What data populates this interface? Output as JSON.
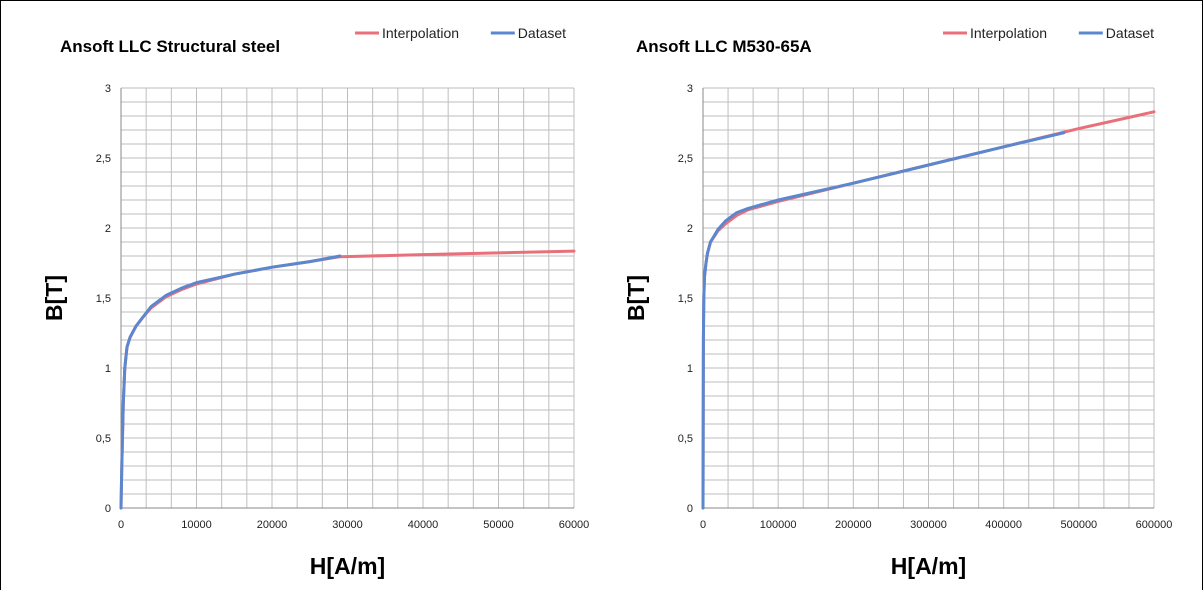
{
  "colors": {
    "interpolation": "#E8707A",
    "dataset": "#5B87CF",
    "grid": "#BEBEBE",
    "axis": "#888888"
  },
  "chart_data": [
    {
      "type": "line",
      "title": "Ansoft LLC Structural steel",
      "xlabel": "H[A/m]",
      "ylabel": "B[T]",
      "xlim": [
        0,
        60000
      ],
      "ylim": [
        0,
        3
      ],
      "x_ticks": [
        "0",
        "10000",
        "20000",
        "30000",
        "40000",
        "50000",
        "60000"
      ],
      "y_ticks": [
        "0",
        "0,5",
        "1",
        "1,5",
        "2",
        "2,5",
        "3"
      ],
      "grid": true,
      "legend": "top-right",
      "series": [
        {
          "name": "Interpolation",
          "color": "#E8707A",
          "x": [
            0,
            100,
            300,
            500,
            800,
            1200,
            2000,
            3000,
            4000,
            6000,
            8000,
            10000,
            15000,
            20000,
            25000,
            29000,
            33000,
            40000,
            52000,
            60000
          ],
          "y": [
            0,
            0.3,
            0.75,
            1.0,
            1.15,
            1.22,
            1.3,
            1.37,
            1.43,
            1.51,
            1.56,
            1.6,
            1.67,
            1.72,
            1.76,
            1.795,
            1.8,
            1.81,
            1.825,
            1.835
          ]
        },
        {
          "name": "Dataset",
          "color": "#5B87CF",
          "x": [
            0,
            100,
            300,
            500,
            800,
            1200,
            2000,
            3000,
            4000,
            6000,
            8000,
            10000,
            15000,
            20000,
            25000,
            29000
          ],
          "y": [
            0,
            0.3,
            0.75,
            1.0,
            1.15,
            1.22,
            1.3,
            1.37,
            1.44,
            1.52,
            1.57,
            1.61,
            1.67,
            1.72,
            1.76,
            1.8
          ]
        }
      ]
    },
    {
      "type": "line",
      "title": "Ansoft LLC M530-65A",
      "xlabel": "H[A/m]",
      "ylabel": "B[T]",
      "xlim": [
        0,
        600000
      ],
      "ylim": [
        0,
        3
      ],
      "x_ticks": [
        "0",
        "100000",
        "200000",
        "300000",
        "400000",
        "500000",
        "600000"
      ],
      "y_ticks": [
        "0",
        "0,5",
        "1",
        "1,5",
        "2",
        "2,5",
        "3"
      ],
      "grid": true,
      "legend": "top-right",
      "series": [
        {
          "name": "Interpolation",
          "color": "#E8707A",
          "x": [
            0,
            200,
            500,
            1000,
            2000,
            4000,
            6000,
            10000,
            20000,
            30000,
            45000,
            60000,
            100000,
            200000,
            300000,
            400000,
            500000,
            600000
          ],
          "y": [
            0,
            0.6,
            1.2,
            1.5,
            1.65,
            1.75,
            1.82,
            1.9,
            1.98,
            2.03,
            2.09,
            2.13,
            2.19,
            2.32,
            2.45,
            2.58,
            2.71,
            2.83
          ]
        },
        {
          "name": "Dataset",
          "color": "#5B87CF",
          "x": [
            0,
            200,
            500,
            1000,
            2000,
            4000,
            6000,
            10000,
            20000,
            30000,
            45000,
            60000,
            100000,
            200000,
            300000,
            400000,
            480000
          ],
          "y": [
            0,
            0.6,
            1.2,
            1.5,
            1.65,
            1.75,
            1.82,
            1.9,
            1.99,
            2.05,
            2.11,
            2.14,
            2.2,
            2.32,
            2.45,
            2.58,
            2.68
          ]
        }
      ]
    }
  ]
}
